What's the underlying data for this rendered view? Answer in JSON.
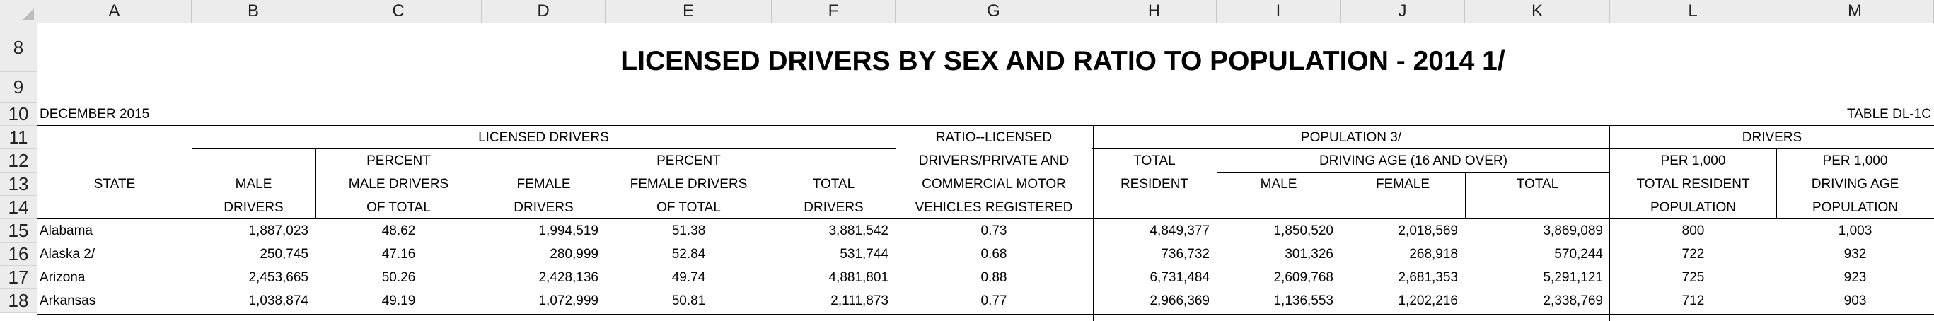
{
  "columns": [
    "A",
    "B",
    "C",
    "D",
    "E",
    "F",
    "G",
    "H",
    "I",
    "J",
    "K",
    "L",
    "M"
  ],
  "rows": [
    "8",
    "9",
    "10",
    "11",
    "12",
    "13",
    "14",
    "15",
    "16",
    "17",
    "18"
  ],
  "title": "LICENSED DRIVERS BY SEX AND RATIO TO POPULATION - 2014 1/",
  "date_label": "DECEMBER 2015",
  "table_label": "TABLE DL-1C",
  "headers": {
    "licensed_drivers": "LICENSED DRIVERS",
    "ratio": [
      "RATIO--LICENSED",
      "DRIVERS/PRIVATE AND",
      "COMMERCIAL MOTOR",
      "VEHICLES REGISTERED"
    ],
    "population": "POPULATION  3/",
    "drivers": "DRIVERS",
    "state": "STATE",
    "male_drivers": [
      "MALE",
      "DRIVERS"
    ],
    "pct_male": [
      "PERCENT",
      "MALE DRIVERS",
      "OF TOTAL"
    ],
    "female_drivers": [
      "FEMALE",
      "DRIVERS"
    ],
    "pct_female": [
      "PERCENT",
      "FEMALE DRIVERS",
      "OF TOTAL"
    ],
    "total_drivers": [
      "TOTAL",
      "DRIVERS"
    ],
    "total_resident": [
      "TOTAL",
      "RESIDENT"
    ],
    "driving_age": "DRIVING AGE (16 AND OVER)",
    "male": "MALE",
    "female": "FEMALE",
    "total": "TOTAL",
    "per_resident": [
      "PER 1,000",
      "TOTAL RESIDENT",
      "POPULATION"
    ],
    "per_driving": [
      "PER 1,000",
      "DRIVING AGE",
      "POPULATION"
    ]
  },
  "data_rows": [
    [
      "Alabama",
      "1,887,023",
      "48.62",
      "1,994,519",
      "51.38",
      "3,881,542",
      "0.73",
      "4,849,377",
      "1,850,520",
      "2,018,569",
      "3,869,089",
      "800",
      "1,003"
    ],
    [
      "Alaska  2/",
      "250,745",
      "47.16",
      "280,999",
      "52.84",
      "531,744",
      "0.68",
      "736,732",
      "301,326",
      "268,918",
      "570,244",
      "722",
      "932"
    ],
    [
      "Arizona",
      "2,453,665",
      "50.26",
      "2,428,136",
      "49.74",
      "4,881,801",
      "0.88",
      "6,731,484",
      "2,609,768",
      "2,681,353",
      "5,291,121",
      "725",
      "923"
    ],
    [
      "Arkansas",
      "1,038,874",
      "49.19",
      "1,072,999",
      "50.81",
      "2,111,873",
      "0.77",
      "2,966,369",
      "1,136,553",
      "1,202,216",
      "2,338,769",
      "712",
      "903"
    ]
  ]
}
